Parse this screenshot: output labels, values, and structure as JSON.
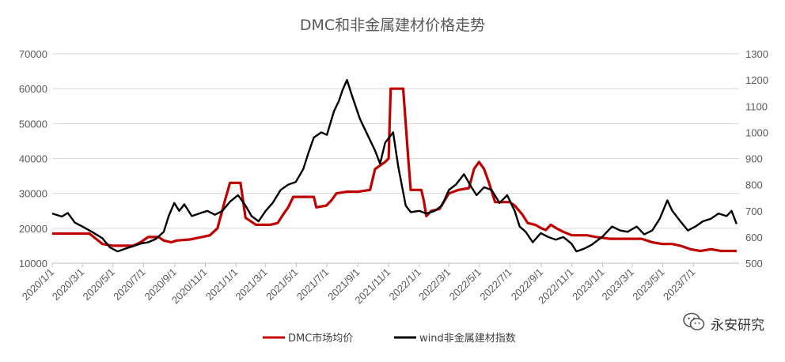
{
  "chart_data": {
    "type": "line",
    "title": "DMC和非金属建材价格走势",
    "left_axis": {
      "min": 10000,
      "max": 70000,
      "step": 10000,
      "ticks": [
        "10000",
        "20000",
        "30000",
        "40000",
        "50000",
        "60000",
        "70000"
      ]
    },
    "right_axis": {
      "min": 500,
      "max": 1300,
      "step": 100,
      "ticks": [
        "500",
        "600",
        "700",
        "800",
        "900",
        "1000",
        "1100",
        "1200",
        "1300"
      ]
    },
    "x_ticks": [
      "2020/1/1",
      "2020/3/1",
      "2020/5/1",
      "2020/7/1",
      "2020/9/1",
      "2020/11/1",
      "2021/1/1",
      "2021/3/1",
      "2021/5/1",
      "2021/7/1",
      "2021/9/1",
      "2021/11/1",
      "2022/1/1",
      "2022/3/1",
      "2022/5/1",
      "2022/7/1",
      "2022/9/1",
      "2022/11/1",
      "2023/1/1",
      "2023/3/1",
      "2023/5/1",
      "2023/7/1"
    ],
    "grid": "horizontal",
    "legend_position": "bottom",
    "series": [
      {
        "name": "DMC市场均价",
        "axis": "left",
        "color": "#c00000",
        "points": [
          [
            "2020/1/1",
            18500
          ],
          [
            "2020/3/15",
            18500
          ],
          [
            "2020/4/10",
            15500
          ],
          [
            "2020/5/1",
            15000
          ],
          [
            "2020/5/20",
            15000
          ],
          [
            "2020/6/10",
            15000
          ],
          [
            "2020/6/25",
            16000
          ],
          [
            "2020/7/10",
            17500
          ],
          [
            "2020/7/31",
            17500
          ],
          [
            "2020/8/10",
            16500
          ],
          [
            "2020/8/25",
            16000
          ],
          [
            "2020/9/5",
            16500
          ],
          [
            "2020/10/1",
            16800
          ],
          [
            "2020/10/25",
            17500
          ],
          [
            "2020/11/10",
            18000
          ],
          [
            "2020/11/25",
            20000
          ],
          [
            "2020/12/10",
            28000
          ],
          [
            "2020/12/20",
            33000
          ],
          [
            "2021/1/10",
            33000
          ],
          [
            "2021/1/20",
            23000
          ],
          [
            "2021/2/10",
            21000
          ],
          [
            "2021/3/10",
            21000
          ],
          [
            "2021/3/25",
            21500
          ],
          [
            "2021/4/5",
            24000
          ],
          [
            "2021/4/15",
            26000
          ],
          [
            "2021/4/25",
            29000
          ],
          [
            "2021/6/5",
            29000
          ],
          [
            "2021/6/10",
            26000
          ],
          [
            "2021/6/30",
            26500
          ],
          [
            "2021/7/10",
            28000
          ],
          [
            "2021/7/20",
            30000
          ],
          [
            "2021/8/10",
            30500
          ],
          [
            "2021/9/1",
            30500
          ],
          [
            "2021/9/25",
            31000
          ],
          [
            "2021/10/5",
            37000
          ],
          [
            "2021/10/25",
            39000
          ],
          [
            "2021/11/1",
            40000
          ],
          [
            "2021/11/5",
            60000
          ],
          [
            "2021/11/30",
            60000
          ],
          [
            "2021/12/10",
            40000
          ],
          [
            "2021/12/15",
            31000
          ],
          [
            "2022/1/5",
            31000
          ],
          [
            "2022/1/10",
            28000
          ],
          [
            "2022/1/15",
            23500
          ],
          [
            "2022/1/25",
            25000
          ],
          [
            "2022/2/10",
            25500
          ],
          [
            "2022/3/1",
            30000
          ],
          [
            "2022/3/20",
            31000
          ],
          [
            "2022/4/10",
            31500
          ],
          [
            "2022/4/20",
            37000
          ],
          [
            "2022/4/30",
            39000
          ],
          [
            "2022/5/10",
            37000
          ],
          [
            "2022/5/20",
            33000
          ],
          [
            "2022/6/1",
            27500
          ],
          [
            "2022/6/30",
            27500
          ],
          [
            "2022/7/10",
            26500
          ],
          [
            "2022/7/25",
            24000
          ],
          [
            "2022/8/5",
            21500
          ],
          [
            "2022/8/20",
            21000
          ],
          [
            "2022/9/1",
            20000
          ],
          [
            "2022/9/10",
            19500
          ],
          [
            "2022/9/20",
            21000
          ],
          [
            "2022/10/1",
            20000
          ],
          [
            "2022/10/15",
            19000
          ],
          [
            "2022/11/1",
            18000
          ],
          [
            "2022/12/1",
            18000
          ],
          [
            "2022/12/20",
            17500
          ],
          [
            "2023/1/15",
            17000
          ],
          [
            "2023/3/1",
            17000
          ],
          [
            "2023/3/20",
            17000
          ],
          [
            "2023/4/10",
            16000
          ],
          [
            "2023/4/30",
            15500
          ],
          [
            "2023/5/20",
            15500
          ],
          [
            "2023/6/5",
            15000
          ],
          [
            "2023/6/25",
            14000
          ],
          [
            "2023/7/15",
            13500
          ],
          [
            "2023/8/5",
            14000
          ],
          [
            "2023/8/25",
            13500
          ],
          [
            "2023/9/25",
            13500
          ]
        ]
      },
      {
        "name": "wind非金属建材指数",
        "axis": "right",
        "color": "#000000",
        "points": [
          [
            "2020/1/1",
            690
          ],
          [
            "2020/1/20",
            678
          ],
          [
            "2020/2/1",
            692
          ],
          [
            "2020/2/15",
            655
          ],
          [
            "2020/3/1",
            640
          ],
          [
            "2020/3/20",
            620
          ],
          [
            "2020/4/10",
            595
          ],
          [
            "2020/4/25",
            560
          ],
          [
            "2020/5/10",
            545
          ],
          [
            "2020/5/25",
            555
          ],
          [
            "2020/6/10",
            565
          ],
          [
            "2020/6/25",
            575
          ],
          [
            "2020/7/10",
            580
          ],
          [
            "2020/7/25",
            592
          ],
          [
            "2020/8/10",
            620
          ],
          [
            "2020/8/20",
            680
          ],
          [
            "2020/8/31",
            730
          ],
          [
            "2020/9/10",
            700
          ],
          [
            "2020/9/20",
            725
          ],
          [
            "2020/10/5",
            680
          ],
          [
            "2020/10/20",
            690
          ],
          [
            "2020/11/5",
            700
          ],
          [
            "2020/11/20",
            685
          ],
          [
            "2020/12/5",
            700
          ],
          [
            "2020/12/20",
            735
          ],
          [
            "2021/1/5",
            760
          ],
          [
            "2021/1/20",
            720
          ],
          [
            "2021/2/1",
            680
          ],
          [
            "2021/2/15",
            660
          ],
          [
            "2021/3/1",
            700
          ],
          [
            "2021/3/15",
            730
          ],
          [
            "2021/3/31",
            780
          ],
          [
            "2021/4/15",
            800
          ],
          [
            "2021/4/30",
            810
          ],
          [
            "2021/5/15",
            860
          ],
          [
            "2021/5/25",
            920
          ],
          [
            "2021/6/5",
            980
          ],
          [
            "2021/6/20",
            1000
          ],
          [
            "2021/7/1",
            990
          ],
          [
            "2021/7/15",
            1080
          ],
          [
            "2021/7/25",
            1120
          ],
          [
            "2021/8/1",
            1160
          ],
          [
            "2021/8/10",
            1200
          ],
          [
            "2021/8/20",
            1140
          ],
          [
            "2021/9/5",
            1050
          ],
          [
            "2021/9/20",
            990
          ],
          [
            "2021/10/5",
            930
          ],
          [
            "2021/10/15",
            880
          ],
          [
            "2021/10/25",
            960
          ],
          [
            "2021/11/10",
            1000
          ],
          [
            "2021/11/20",
            870
          ],
          [
            "2021/12/5",
            720
          ],
          [
            "2021/12/15",
            695
          ],
          [
            "2022/1/1",
            700
          ],
          [
            "2022/1/15",
            690
          ],
          [
            "2022/2/1",
            700
          ],
          [
            "2022/2/15",
            720
          ],
          [
            "2022/3/1",
            780
          ],
          [
            "2022/3/15",
            800
          ],
          [
            "2022/3/31",
            840
          ],
          [
            "2022/4/15",
            790
          ],
          [
            "2022/4/25",
            760
          ],
          [
            "2022/5/10",
            790
          ],
          [
            "2022/5/25",
            780
          ],
          [
            "2022/6/10",
            730
          ],
          [
            "2022/6/25",
            760
          ],
          [
            "2022/7/10",
            700
          ],
          [
            "2022/7/20",
            640
          ],
          [
            "2022/8/1",
            620
          ],
          [
            "2022/8/15",
            580
          ],
          [
            "2022/8/31",
            615
          ],
          [
            "2022/9/15",
            600
          ],
          [
            "2022/9/30",
            590
          ],
          [
            "2022/10/15",
            600
          ],
          [
            "2022/10/31",
            575
          ],
          [
            "2022/11/10",
            545
          ],
          [
            "2022/11/25",
            555
          ],
          [
            "2022/12/10",
            570
          ],
          [
            "2022/12/31",
            600
          ],
          [
            "2023/1/20",
            640
          ],
          [
            "2023/2/5",
            625
          ],
          [
            "2023/2/20",
            620
          ],
          [
            "2023/3/10",
            640
          ],
          [
            "2023/3/25",
            610
          ],
          [
            "2023/4/10",
            625
          ],
          [
            "2023/4/25",
            670
          ],
          [
            "2023/5/10",
            740
          ],
          [
            "2023/5/20",
            700
          ],
          [
            "2023/6/5",
            660
          ],
          [
            "2023/6/20",
            625
          ],
          [
            "2023/7/5",
            640
          ],
          [
            "2023/7/20",
            660
          ],
          [
            "2023/8/5",
            670
          ],
          [
            "2023/8/20",
            690
          ],
          [
            "2023/9/5",
            680
          ],
          [
            "2023/9/15",
            700
          ],
          [
            "2023/9/25",
            650
          ]
        ]
      }
    ]
  },
  "watermark": {
    "text": "永安研究",
    "icon": "wechat-icon"
  }
}
